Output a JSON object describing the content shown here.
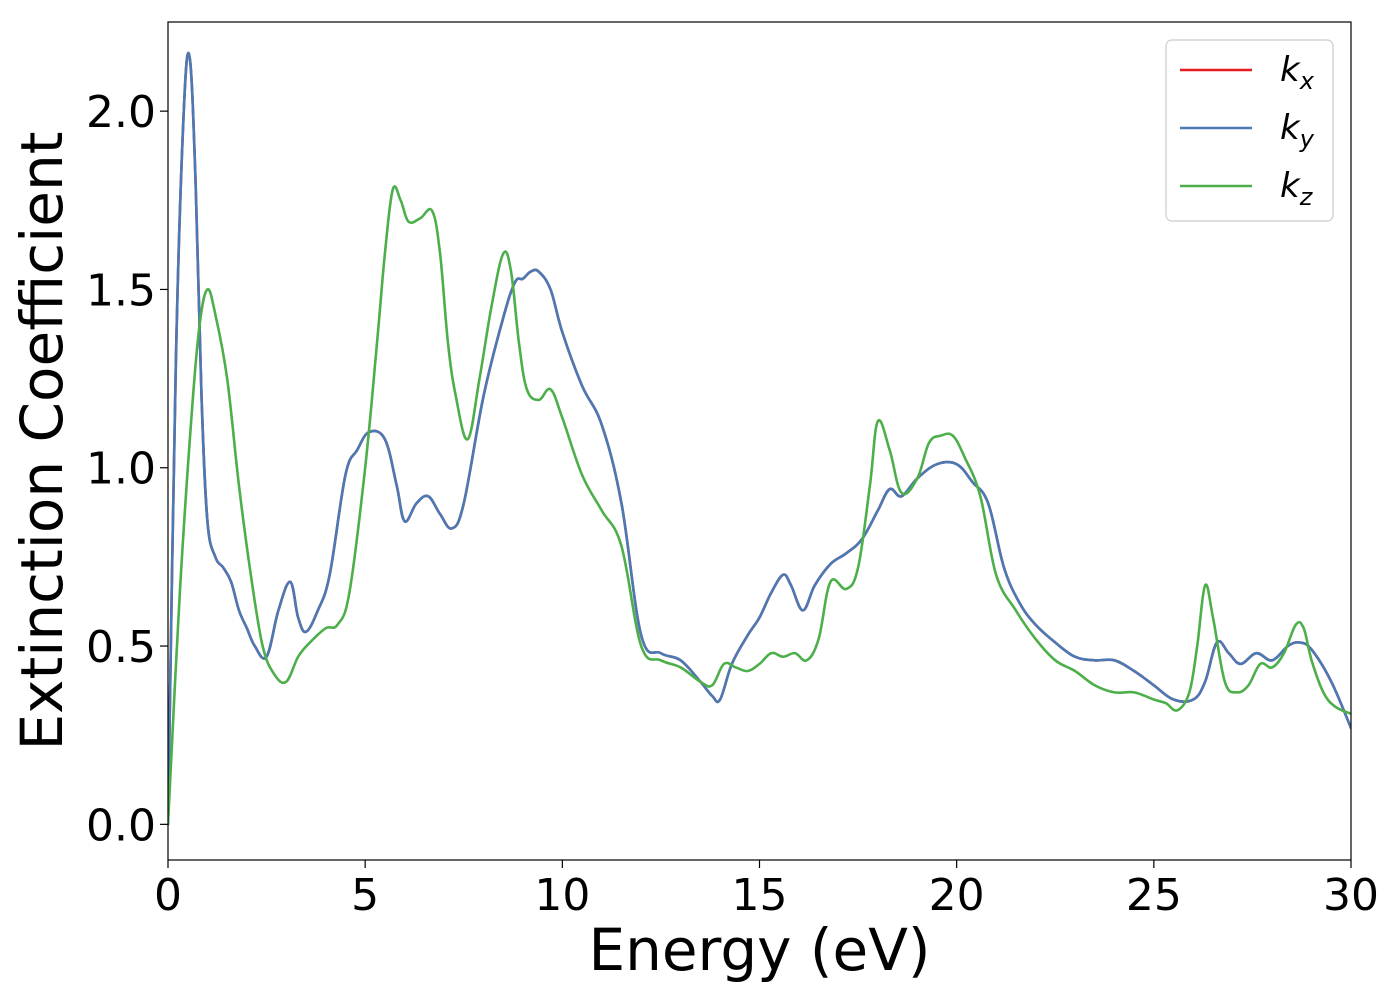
{
  "chart_data": {
    "type": "line",
    "title": "",
    "xlabel": "Energy (eV)",
    "ylabel": "Extinction Coefficient",
    "xlim": [
      0,
      30
    ],
    "ylim": [
      -0.1,
      2.25
    ],
    "xticks": [
      0,
      5,
      10,
      15,
      20,
      25,
      30
    ],
    "xtick_labels": [
      "0",
      "5",
      "10",
      "15",
      "20",
      "25",
      "30"
    ],
    "yticks": [
      0.0,
      0.5,
      1.0,
      1.5,
      2.0
    ],
    "ytick_labels": [
      "0.0",
      "0.5",
      "1.0",
      "1.5",
      "2.0"
    ],
    "grid": false,
    "legend_position": "top-right",
    "series": [
      {
        "name": "k_x",
        "legend_base": "k",
        "legend_sub": "x",
        "color": "#e41a1c",
        "x": [
          0,
          0.2,
          0.4,
          0.55,
          0.7,
          0.85,
          1.0,
          1.2,
          1.4,
          1.6,
          1.8,
          2.0,
          2.2,
          2.5,
          2.8,
          3.1,
          3.3,
          3.5,
          3.8,
          4.1,
          4.5,
          4.8,
          5.1,
          5.5,
          5.8,
          6.0,
          6.3,
          6.6,
          6.9,
          7.2,
          7.5,
          8.0,
          8.5,
          8.8,
          9.0,
          9.2,
          9.4,
          9.7,
          10.0,
          10.5,
          11.0,
          11.5,
          12.0,
          12.5,
          13.0,
          13.5,
          13.8,
          14.0,
          14.3,
          14.7,
          15.0,
          15.3,
          15.6,
          15.8,
          16.1,
          16.4,
          16.8,
          17.2,
          17.6,
          18.0,
          18.3,
          18.6,
          19.0,
          19.5,
          20.0,
          20.4,
          20.8,
          21.2,
          21.6,
          22.0,
          22.5,
          23.0,
          23.5,
          24.0,
          24.5,
          25.0,
          25.5,
          26.0,
          26.3,
          26.6,
          26.9,
          27.2,
          27.6,
          28.0,
          28.4,
          28.7,
          29.0,
          29.5,
          30.0
        ],
        "y": [
          0.0,
          1.3,
          2.0,
          2.15,
          1.8,
          1.2,
          0.85,
          0.75,
          0.72,
          0.68,
          0.6,
          0.55,
          0.5,
          0.47,
          0.6,
          0.68,
          0.58,
          0.54,
          0.6,
          0.7,
          0.98,
          1.05,
          1.1,
          1.08,
          0.95,
          0.85,
          0.9,
          0.92,
          0.87,
          0.83,
          0.9,
          1.2,
          1.42,
          1.52,
          1.53,
          1.55,
          1.55,
          1.5,
          1.38,
          1.23,
          1.12,
          0.9,
          0.53,
          0.48,
          0.46,
          0.4,
          0.36,
          0.35,
          0.45,
          0.53,
          0.58,
          0.65,
          0.7,
          0.67,
          0.6,
          0.67,
          0.73,
          0.76,
          0.8,
          0.88,
          0.94,
          0.92,
          0.97,
          1.01,
          1.01,
          0.96,
          0.9,
          0.72,
          0.62,
          0.56,
          0.51,
          0.47,
          0.46,
          0.46,
          0.43,
          0.39,
          0.35,
          0.35,
          0.4,
          0.51,
          0.48,
          0.45,
          0.48,
          0.46,
          0.5,
          0.51,
          0.49,
          0.4,
          0.27
        ]
      },
      {
        "name": "k_y",
        "legend_base": "k",
        "legend_sub": "y",
        "color": "#4a7ab5",
        "x": [
          0,
          0.2,
          0.4,
          0.55,
          0.7,
          0.85,
          1.0,
          1.2,
          1.4,
          1.6,
          1.8,
          2.0,
          2.2,
          2.5,
          2.8,
          3.1,
          3.3,
          3.5,
          3.8,
          4.1,
          4.5,
          4.8,
          5.1,
          5.5,
          5.8,
          6.0,
          6.3,
          6.6,
          6.9,
          7.2,
          7.5,
          8.0,
          8.5,
          8.8,
          9.0,
          9.2,
          9.4,
          9.7,
          10.0,
          10.5,
          11.0,
          11.5,
          12.0,
          12.5,
          13.0,
          13.5,
          13.8,
          14.0,
          14.3,
          14.7,
          15.0,
          15.3,
          15.6,
          15.8,
          16.1,
          16.4,
          16.8,
          17.2,
          17.6,
          18.0,
          18.3,
          18.6,
          19.0,
          19.5,
          20.0,
          20.4,
          20.8,
          21.2,
          21.6,
          22.0,
          22.5,
          23.0,
          23.5,
          24.0,
          24.5,
          25.0,
          25.5,
          26.0,
          26.3,
          26.6,
          26.9,
          27.2,
          27.6,
          28.0,
          28.4,
          28.7,
          29.0,
          29.5,
          30.0
        ],
        "y": [
          0.0,
          1.3,
          2.0,
          2.15,
          1.8,
          1.2,
          0.85,
          0.75,
          0.72,
          0.68,
          0.6,
          0.55,
          0.5,
          0.47,
          0.6,
          0.68,
          0.58,
          0.54,
          0.6,
          0.7,
          0.98,
          1.05,
          1.1,
          1.08,
          0.95,
          0.85,
          0.9,
          0.92,
          0.87,
          0.83,
          0.9,
          1.2,
          1.42,
          1.52,
          1.53,
          1.55,
          1.55,
          1.5,
          1.38,
          1.23,
          1.12,
          0.9,
          0.53,
          0.48,
          0.46,
          0.4,
          0.36,
          0.35,
          0.45,
          0.53,
          0.58,
          0.65,
          0.7,
          0.67,
          0.6,
          0.67,
          0.73,
          0.76,
          0.8,
          0.88,
          0.94,
          0.92,
          0.97,
          1.01,
          1.01,
          0.96,
          0.9,
          0.72,
          0.62,
          0.56,
          0.51,
          0.47,
          0.46,
          0.46,
          0.43,
          0.39,
          0.35,
          0.35,
          0.4,
          0.51,
          0.48,
          0.45,
          0.48,
          0.46,
          0.5,
          0.51,
          0.49,
          0.4,
          0.27
        ]
      },
      {
        "name": "k_z",
        "legend_base": "k",
        "legend_sub": "z",
        "color": "#4daf4a",
        "x": [
          0,
          0.3,
          0.6,
          0.8,
          1.0,
          1.2,
          1.5,
          1.8,
          2.1,
          2.4,
          2.7,
          3.0,
          3.3,
          3.6,
          4.0,
          4.3,
          4.6,
          5.0,
          5.3,
          5.5,
          5.7,
          5.9,
          6.1,
          6.4,
          6.7,
          6.9,
          7.1,
          7.3,
          7.6,
          7.9,
          8.2,
          8.5,
          8.7,
          8.9,
          9.1,
          9.4,
          9.7,
          10.0,
          10.5,
          11.0,
          11.5,
          12.0,
          12.5,
          13.0,
          13.5,
          13.8,
          14.1,
          14.4,
          14.7,
          15.0,
          15.3,
          15.6,
          15.9,
          16.2,
          16.5,
          16.8,
          17.2,
          17.5,
          17.8,
          18.0,
          18.3,
          18.6,
          19.0,
          19.3,
          19.6,
          19.9,
          20.2,
          20.6,
          21.0,
          21.5,
          22.0,
          22.5,
          23.0,
          23.5,
          24.0,
          24.5,
          25.0,
          25.3,
          25.6,
          25.9,
          26.1,
          26.3,
          26.5,
          26.8,
          27.1,
          27.4,
          27.7,
          28.0,
          28.3,
          28.6,
          28.8,
          29.0,
          29.3,
          29.6,
          30.0
        ],
        "y": [
          0.0,
          0.65,
          1.15,
          1.4,
          1.5,
          1.43,
          1.25,
          0.95,
          0.7,
          0.5,
          0.42,
          0.4,
          0.47,
          0.51,
          0.55,
          0.56,
          0.65,
          1.0,
          1.35,
          1.6,
          1.78,
          1.75,
          1.69,
          1.7,
          1.72,
          1.6,
          1.35,
          1.2,
          1.08,
          1.25,
          1.45,
          1.6,
          1.55,
          1.35,
          1.22,
          1.19,
          1.22,
          1.14,
          0.98,
          0.88,
          0.78,
          0.5,
          0.46,
          0.44,
          0.4,
          0.39,
          0.45,
          0.44,
          0.43,
          0.45,
          0.48,
          0.47,
          0.48,
          0.46,
          0.52,
          0.68,
          0.66,
          0.72,
          0.95,
          1.13,
          1.05,
          0.93,
          0.97,
          1.07,
          1.09,
          1.09,
          1.03,
          0.92,
          0.7,
          0.6,
          0.52,
          0.46,
          0.43,
          0.39,
          0.37,
          0.37,
          0.35,
          0.34,
          0.32,
          0.37,
          0.5,
          0.67,
          0.58,
          0.4,
          0.37,
          0.39,
          0.45,
          0.44,
          0.48,
          0.56,
          0.55,
          0.46,
          0.37,
          0.33,
          0.31
        ]
      }
    ]
  }
}
